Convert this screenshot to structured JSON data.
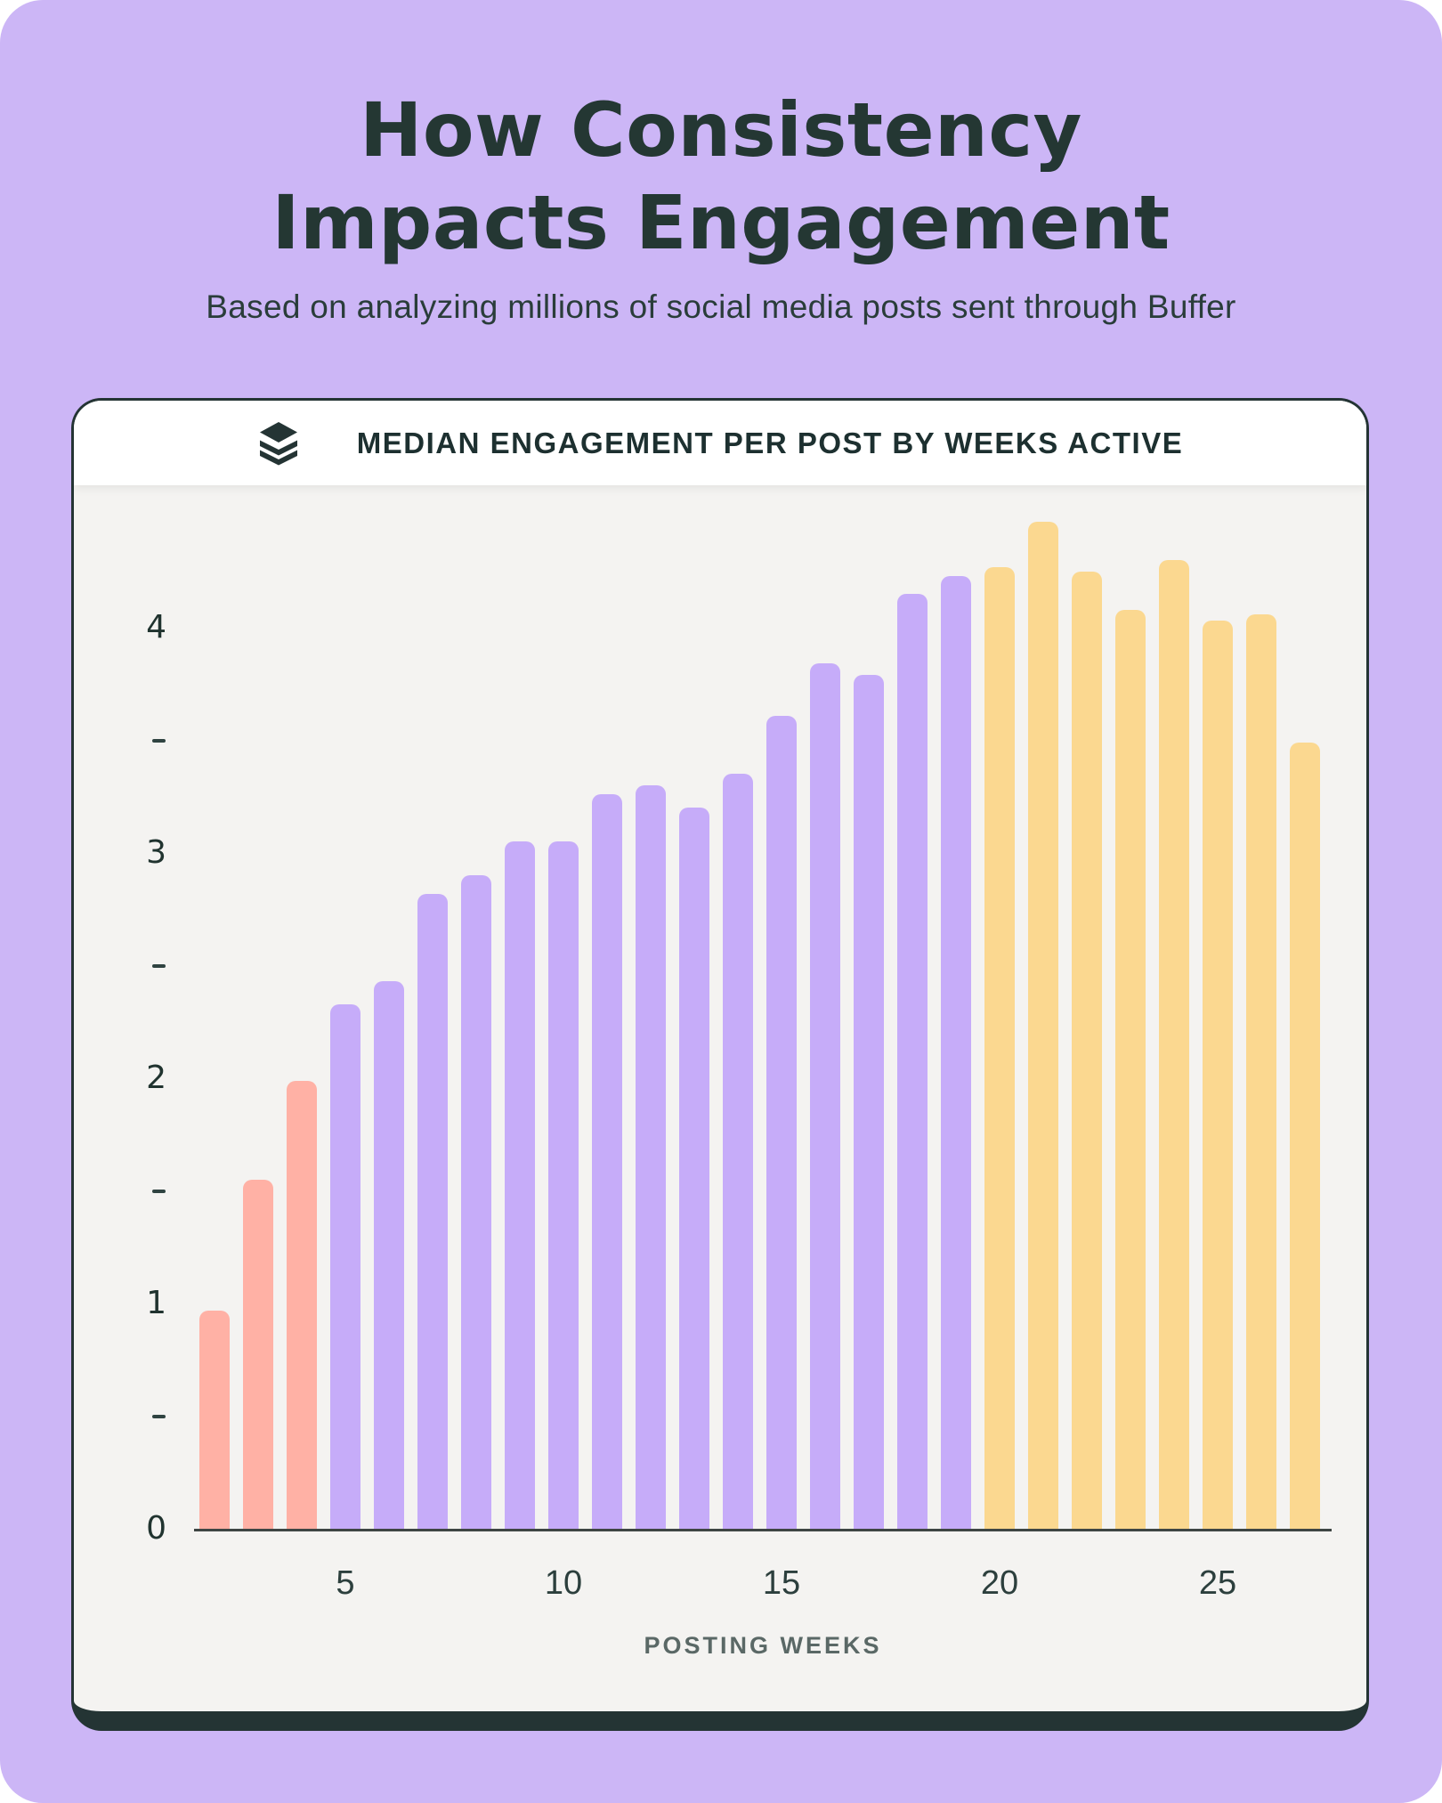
{
  "page": {
    "title": "How Consistency\nImpacts Engagement",
    "subtitle": "Based on analyzing millions of social media posts sent through Buffer"
  },
  "card_header": {
    "icon": "buffer-logo-icon",
    "label": "MEDIAN ENGAGEMENT PER POST BY WEEKS ACTIVE"
  },
  "chart_data": {
    "type": "bar",
    "title": "MEDIAN ENGAGEMENT PER POST BY WEEKS ACTIVE",
    "xlabel": "POSTING WEEKS",
    "ylabel": "",
    "ylim": [
      0,
      4.6
    ],
    "grid": false,
    "x_ticks": [
      5,
      10,
      15,
      20,
      25
    ],
    "y_ticks": [
      0,
      1,
      2,
      3,
      4
    ],
    "y_minor_ticks": [
      0.5,
      1.5,
      2.5,
      3.5
    ],
    "group_colors": {
      "early": "#ffb1a5",
      "growth": "#c6acf9",
      "sustained": "#fbd890"
    },
    "bars": [
      {
        "week": 2,
        "value": 0.97,
        "group": "early"
      },
      {
        "week": 3,
        "value": 1.55,
        "group": "early"
      },
      {
        "week": 4,
        "value": 1.99,
        "group": "early"
      },
      {
        "week": 5,
        "value": 2.33,
        "group": "growth"
      },
      {
        "week": 6,
        "value": 2.43,
        "group": "growth"
      },
      {
        "week": 7,
        "value": 2.82,
        "group": "growth"
      },
      {
        "week": 8,
        "value": 2.9,
        "group": "growth"
      },
      {
        "week": 9,
        "value": 3.05,
        "group": "growth"
      },
      {
        "week": 10,
        "value": 3.05,
        "group": "growth"
      },
      {
        "week": 11,
        "value": 3.26,
        "group": "growth"
      },
      {
        "week": 12,
        "value": 3.3,
        "group": "growth"
      },
      {
        "week": 13,
        "value": 3.2,
        "group": "growth"
      },
      {
        "week": 14,
        "value": 3.35,
        "group": "growth"
      },
      {
        "week": 15,
        "value": 3.61,
        "group": "growth"
      },
      {
        "week": 16,
        "value": 3.84,
        "group": "growth"
      },
      {
        "week": 17,
        "value": 3.79,
        "group": "growth"
      },
      {
        "week": 18,
        "value": 4.15,
        "group": "growth"
      },
      {
        "week": 19,
        "value": 4.23,
        "group": "growth"
      },
      {
        "week": 20,
        "value": 4.27,
        "group": "sustained"
      },
      {
        "week": 21,
        "value": 4.47,
        "group": "sustained"
      },
      {
        "week": 22,
        "value": 4.25,
        "group": "sustained"
      },
      {
        "week": 23,
        "value": 4.08,
        "group": "sustained"
      },
      {
        "week": 24,
        "value": 4.3,
        "group": "sustained"
      },
      {
        "week": 25,
        "value": 4.03,
        "group": "sustained"
      },
      {
        "week": 26,
        "value": 4.06,
        "group": "sustained"
      },
      {
        "week": 27,
        "value": 3.49,
        "group": "sustained"
      }
    ]
  },
  "colors": {
    "page_background": "#ccb6f6",
    "card_background": "#f4f3f1",
    "header_background": "#ffffff",
    "dark_outline": "#243434",
    "axis_line": "#3e4543",
    "text_dark": "#243733"
  }
}
